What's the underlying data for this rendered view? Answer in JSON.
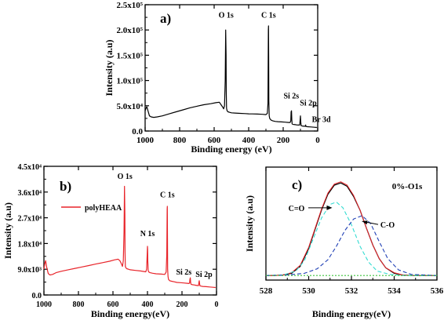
{
  "chart_data": [
    {
      "type": "line",
      "panel_label": "a)",
      "xlabel": "Binding energy (eV)",
      "ylabel": "Intensity (a.u)",
      "xlim": [
        1000,
        0
      ],
      "ylim": [
        0,
        250000
      ],
      "x_ticks": [
        "1000",
        "800",
        "600",
        "400",
        "200",
        "0"
      ],
      "x_tick_values": [
        1000,
        800,
        600,
        400,
        200,
        0
      ],
      "y_ticks": [
        "0.0",
        "5.0x10⁴",
        "1.0x10⁵",
        "1.5x10⁵",
        "2.0x10⁵",
        "2.5x10⁵"
      ],
      "y_tick_values": [
        0,
        50000,
        100000,
        150000,
        200000,
        250000
      ],
      "series": [
        {
          "color": "#000000",
          "x": [
            1000,
            995,
            990,
            985,
            975,
            965,
            950,
            930,
            900,
            860,
            820,
            780,
            740,
            700,
            660,
            620,
            590,
            570,
            560,
            552,
            545,
            540,
            536,
            533,
            531,
            530,
            528,
            525,
            520,
            510,
            500,
            480,
            450,
            420,
            400,
            380,
            350,
            320,
            300,
            292,
            288,
            286,
            285,
            284,
            283,
            281,
            278,
            272,
            260,
            245,
            230,
            210,
            190,
            170,
            160,
            156,
            154,
            152,
            150,
            148,
            140,
            130,
            120,
            110,
            104,
            102,
            100,
            98,
            96,
            90,
            80,
            72,
            70,
            68,
            60,
            40,
            20,
            5
          ],
          "y": [
            40000,
            45000,
            48000,
            42000,
            30000,
            28000,
            27000,
            28000,
            30000,
            34000,
            38000,
            42000,
            46000,
            49000,
            52000,
            54000,
            56000,
            57000,
            52000,
            48000,
            44000,
            50000,
            100000,
            200000,
            150000,
            80000,
            45000,
            40000,
            38000,
            37000,
            36000,
            35500,
            35000,
            34500,
            34000,
            33800,
            33500,
            33000,
            32500,
            35000,
            55000,
            200000,
            208000,
            150000,
            60000,
            30000,
            25000,
            22000,
            20000,
            19000,
            18500,
            18000,
            17500,
            17000,
            17000,
            20000,
            38000,
            40000,
            22000,
            14000,
            13000,
            12500,
            12000,
            11800,
            12000,
            22000,
            30000,
            18000,
            10500,
            10000,
            9500,
            9500,
            12000,
            9000,
            8500,
            8000,
            7500,
            7000
          ]
        }
      ],
      "annotations": [
        {
          "text": "O 1s",
          "x": 531,
          "y": 215000
        },
        {
          "text": "C 1s",
          "x": 285,
          "y": 215000
        },
        {
          "text": "Si 2s",
          "x": 153,
          "y": 58000
        },
        {
          "text": "Si 2p",
          "x": 100,
          "y": 44000
        },
        {
          "text": "Br 3d",
          "x": 70,
          "y": 12000
        }
      ]
    },
    {
      "type": "line",
      "panel_label": "b)",
      "xlabel": "Binding  energy(eV)",
      "ylabel": "Intensity (a.u)",
      "xlim": [
        1000,
        0
      ],
      "ylim": [
        0,
        45000
      ],
      "x_ticks": [
        "1000",
        "800",
        "600",
        "400",
        "200",
        "0"
      ],
      "x_tick_values": [
        1000,
        800,
        600,
        400,
        200,
        0
      ],
      "y_ticks": [
        "0.0",
        "9.0x10³",
        "1.8x10⁴",
        "2.7x10⁴",
        "3.6x10⁴",
        "4.5x10⁴"
      ],
      "y_tick_values": [
        0,
        9000,
        18000,
        27000,
        36000,
        45000
      ],
      "legend": {
        "entries": [
          "polyHEAA"
        ],
        "position": "top-left"
      },
      "series": [
        {
          "name": "polyHEAA",
          "color": "#e8242a",
          "x": [
            1000,
            995,
            990,
            985,
            975,
            965,
            950,
            930,
            900,
            860,
            820,
            780,
            740,
            700,
            660,
            620,
            590,
            570,
            560,
            552,
            545,
            540,
            536,
            533,
            531,
            530,
            528,
            525,
            520,
            510,
            500,
            470,
            440,
            420,
            410,
            405,
            402,
            400,
            399,
            398,
            396,
            392,
            385,
            370,
            350,
            320,
            300,
            292,
            288,
            286,
            285,
            284,
            283,
            281,
            278,
            272,
            260,
            245,
            230,
            210,
            190,
            170,
            160,
            156,
            154,
            152,
            150,
            148,
            140,
            130,
            120,
            110,
            104,
            102,
            100,
            98,
            96,
            90,
            80,
            60,
            40,
            20,
            5
          ],
          "y": [
            9000,
            11000,
            12000,
            10000,
            7500,
            7000,
            7200,
            7800,
            8300,
            8800,
            9300,
            9800,
            10300,
            10800,
            11300,
            11800,
            12300,
            12500,
            12000,
            11000,
            10000,
            12000,
            22000,
            38000,
            28000,
            15000,
            10000,
            9500,
            9200,
            9000,
            8800,
            8600,
            8400,
            8200,
            8100,
            9000,
            14000,
            17000,
            16000,
            12000,
            8500,
            8000,
            7800,
            7600,
            7400,
            7300,
            7200,
            8000,
            14000,
            30000,
            31000,
            20000,
            9000,
            6500,
            5500,
            5000,
            4800,
            4600,
            4400,
            4300,
            4200,
            4100,
            4000,
            4200,
            5500,
            6000,
            4500,
            3800,
            3600,
            3500,
            3400,
            3300,
            3300,
            4500,
            5000,
            4000,
            3200,
            3100,
            3000,
            2900,
            2800,
            2700,
            2600
          ]
        }
      ],
      "annotations": [
        {
          "text": "O 1s",
          "x": 531,
          "y": 39000
        },
        {
          "text": "N 1s",
          "x": 400,
          "y": 19000
        },
        {
          "text": "C 1s",
          "x": 285,
          "y": 32500
        },
        {
          "text": "Si 2s",
          "x": 153,
          "y": 6000
        },
        {
          "text": "Si 2p",
          "x": 100,
          "y": 5200
        }
      ]
    },
    {
      "type": "line",
      "panel_label": "c)",
      "title": "0%-O1s",
      "xlabel": "Binding energy(eV)",
      "ylabel": "Intensity (a.u)",
      "xlim": [
        528,
        536
      ],
      "ylim": [
        0,
        1
      ],
      "x_ticks": [
        "528",
        "530",
        "532",
        "534",
        "536"
      ],
      "x_tick_values": [
        528,
        530,
        532,
        534,
        536
      ],
      "annotations": [
        {
          "text": "C=O",
          "x": 531.1,
          "y": 0.64
        },
        {
          "text": "C-O",
          "x": 532.5,
          "y": 0.52
        }
      ],
      "series": [
        {
          "color": "#000000",
          "x": [
            528.0,
            528.4,
            528.8,
            529.2,
            529.6,
            530.0,
            530.3,
            530.6,
            530.9,
            531.2,
            531.5,
            531.8,
            532.1,
            532.4,
            532.7,
            533.0,
            533.3,
            533.6,
            534.0,
            534.4,
            534.8,
            535.2,
            535.6,
            536.0
          ],
          "y": [
            0.04,
            0.04,
            0.045,
            0.06,
            0.12,
            0.28,
            0.45,
            0.62,
            0.76,
            0.84,
            0.86,
            0.83,
            0.74,
            0.62,
            0.46,
            0.31,
            0.19,
            0.11,
            0.06,
            0.045,
            0.04,
            0.04,
            0.04,
            0.04
          ]
        },
        {
          "color": "#e8242a",
          "x": [
            528.0,
            528.4,
            528.8,
            529.2,
            529.6,
            530.0,
            530.3,
            530.6,
            530.9,
            531.2,
            531.5,
            531.8,
            532.1,
            532.4,
            532.7,
            533.0,
            533.3,
            533.6,
            534.0,
            534.4,
            534.8,
            535.2,
            535.6,
            536.0
          ],
          "y": [
            0.04,
            0.04,
            0.045,
            0.065,
            0.13,
            0.29,
            0.46,
            0.63,
            0.77,
            0.85,
            0.87,
            0.84,
            0.75,
            0.62,
            0.46,
            0.31,
            0.19,
            0.11,
            0.065,
            0.045,
            0.04,
            0.04,
            0.04,
            0.04
          ]
        },
        {
          "color": "#33dcd2",
          "x": [
            528.0,
            528.8,
            529.4,
            529.8,
            530.2,
            530.6,
            531.0,
            531.3,
            531.6,
            532.0,
            532.4,
            532.8,
            533.2,
            533.8,
            534.4,
            536.0
          ],
          "y": [
            0.04,
            0.045,
            0.08,
            0.17,
            0.36,
            0.55,
            0.67,
            0.69,
            0.64,
            0.49,
            0.3,
            0.16,
            0.08,
            0.05,
            0.04,
            0.04
          ]
        },
        {
          "color": "#1f3fb5",
          "x": [
            528.0,
            529.0,
            529.8,
            530.4,
            530.9,
            531.3,
            531.7,
            532.1,
            532.5,
            532.9,
            533.3,
            533.7,
            534.2,
            534.8,
            536.0
          ],
          "y": [
            0.04,
            0.045,
            0.06,
            0.1,
            0.18,
            0.3,
            0.44,
            0.54,
            0.57,
            0.5,
            0.34,
            0.19,
            0.09,
            0.05,
            0.04
          ]
        },
        {
          "color": "#3bc23b",
          "x": [
            528.0,
            536.0
          ],
          "y": [
            0.04,
            0.04
          ]
        }
      ]
    }
  ]
}
